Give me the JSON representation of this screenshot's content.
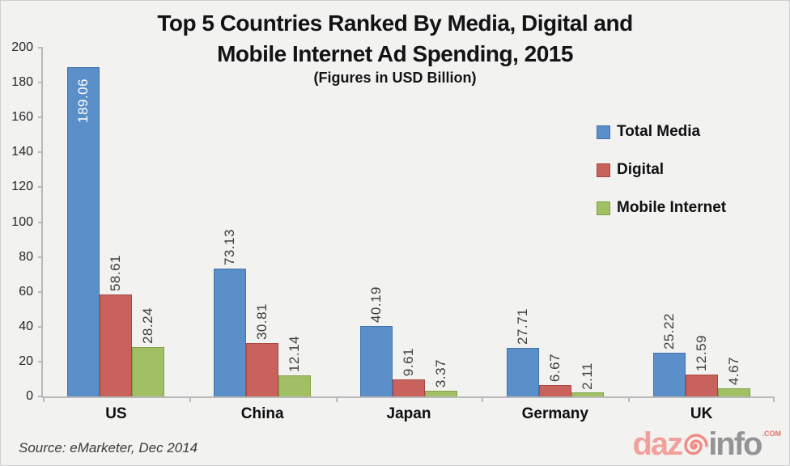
{
  "title": {
    "line1": "Top 5 Countries Ranked By Media, Digital and",
    "line2": "Mobile Internet Ad Spending, 2015",
    "subtitle": "(Figures in USD Billion)"
  },
  "source": {
    "text": "Source: eMarketer, Dec 2014"
  },
  "logo": {
    "part1": "daz",
    "part2": "info",
    "suffix": ".COM",
    "color_part1": "#f2a09b",
    "color_part2": "#949494",
    "color_suffix": "#e4736c",
    "color_spiral": "#ee8b84"
  },
  "chart_data": {
    "type": "bar",
    "title": "Top 5 Countries Ranked By Media, Digital and Mobile Internet Ad Spending, 2015",
    "subtitle": "(Figures in USD Billion)",
    "categories": [
      "US",
      "China",
      "Japan",
      "Germany",
      "UK"
    ],
    "series": [
      {
        "name": "Total Media",
        "color": "#5b8fc9",
        "border_color": "#4173ab",
        "values": [
          189.06,
          73.13,
          40.19,
          27.71,
          25.22
        ]
      },
      {
        "name": "Digital",
        "color": "#c9625c",
        "border_color": "#a8463f",
        "values": [
          58.61,
          30.81,
          9.61,
          6.67,
          12.59
        ]
      },
      {
        "name": "Mobile Internet",
        "color": "#a0c063",
        "border_color": "#82a144",
        "values": [
          28.24,
          12.14,
          3.37,
          2.11,
          4.67
        ]
      }
    ],
    "ylim": [
      0,
      200
    ],
    "ytick_step": 20,
    "grid": false,
    "legend_position": "right",
    "value_label_decimals": 2,
    "label_color_outside": "#3d3d3d",
    "label_color_inside": "#ffffff"
  }
}
